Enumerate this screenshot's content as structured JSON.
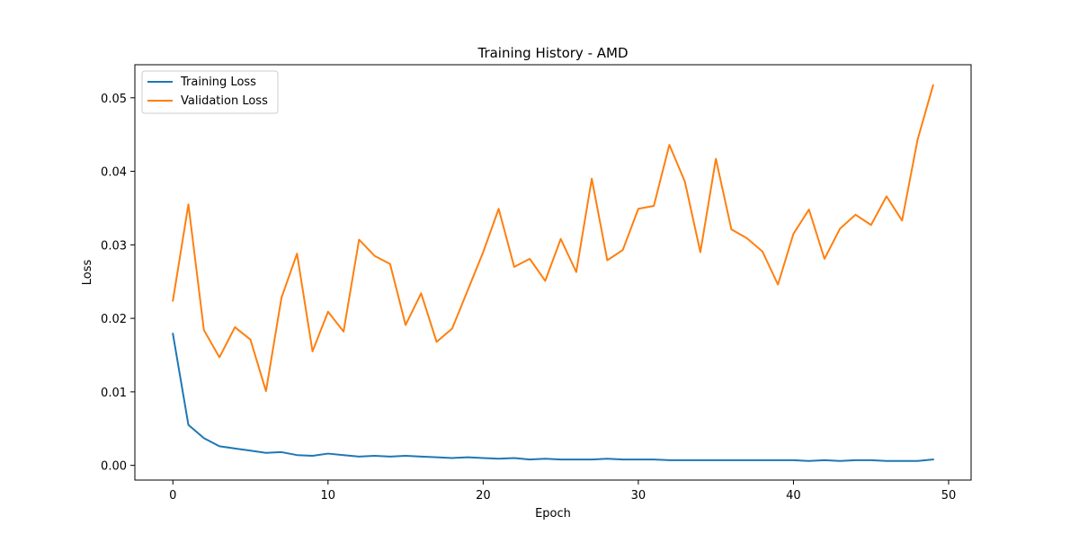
{
  "chart_data": {
    "type": "line",
    "title": "Training History - AMD",
    "xlabel": "Epoch",
    "ylabel": "Loss",
    "xlim": [
      -2.45,
      51.45
    ],
    "ylim": [
      -0.002,
      0.0545
    ],
    "xticks": [
      0,
      10,
      20,
      30,
      40,
      50
    ],
    "yticks": [
      0.0,
      0.01,
      0.02,
      0.03,
      0.04,
      0.05
    ],
    "ytick_labels": [
      "0.00",
      "0.01",
      "0.02",
      "0.03",
      "0.04",
      "0.05"
    ],
    "grid": false,
    "legend_position": "top-left",
    "x": [
      0,
      1,
      2,
      3,
      4,
      5,
      6,
      7,
      8,
      9,
      10,
      11,
      12,
      13,
      14,
      15,
      16,
      17,
      18,
      19,
      20,
      21,
      22,
      23,
      24,
      25,
      26,
      27,
      28,
      29,
      30,
      31,
      32,
      33,
      34,
      35,
      36,
      37,
      38,
      39,
      40,
      41,
      42,
      43,
      44,
      45,
      46,
      47,
      48,
      49
    ],
    "series": [
      {
        "name": "Training Loss",
        "color": "#1f77b4",
        "values": [
          0.0179,
          0.0055,
          0.0037,
          0.0026,
          0.0023,
          0.002,
          0.0017,
          0.0018,
          0.0014,
          0.0013,
          0.0016,
          0.0014,
          0.0012,
          0.0013,
          0.0012,
          0.0013,
          0.0012,
          0.0011,
          0.001,
          0.0011,
          0.001,
          0.0009,
          0.001,
          0.0008,
          0.0009,
          0.0008,
          0.0008,
          0.0008,
          0.0009,
          0.0008,
          0.0008,
          0.0008,
          0.0007,
          0.0007,
          0.0007,
          0.0007,
          0.0007,
          0.0007,
          0.0007,
          0.0007,
          0.0007,
          0.0006,
          0.0007,
          0.0006,
          0.0007,
          0.0007,
          0.0006,
          0.0006,
          0.0006,
          0.0008
        ]
      },
      {
        "name": "Validation Loss",
        "color": "#ff7f0e",
        "values": [
          0.0224,
          0.0355,
          0.0184,
          0.0147,
          0.0188,
          0.0171,
          0.0101,
          0.0228,
          0.0288,
          0.0155,
          0.0209,
          0.0182,
          0.0307,
          0.0285,
          0.0274,
          0.0191,
          0.0234,
          0.0168,
          0.0186,
          0.0238,
          0.029,
          0.0349,
          0.027,
          0.0281,
          0.0251,
          0.0308,
          0.0263,
          0.039,
          0.0279,
          0.0293,
          0.0349,
          0.0353,
          0.0436,
          0.0386,
          0.029,
          0.0417,
          0.0321,
          0.0309,
          0.0291,
          0.0246,
          0.0315,
          0.0348,
          0.0281,
          0.0322,
          0.0341,
          0.0327,
          0.0366,
          0.0333,
          0.0443,
          0.0517
        ]
      }
    ]
  }
}
